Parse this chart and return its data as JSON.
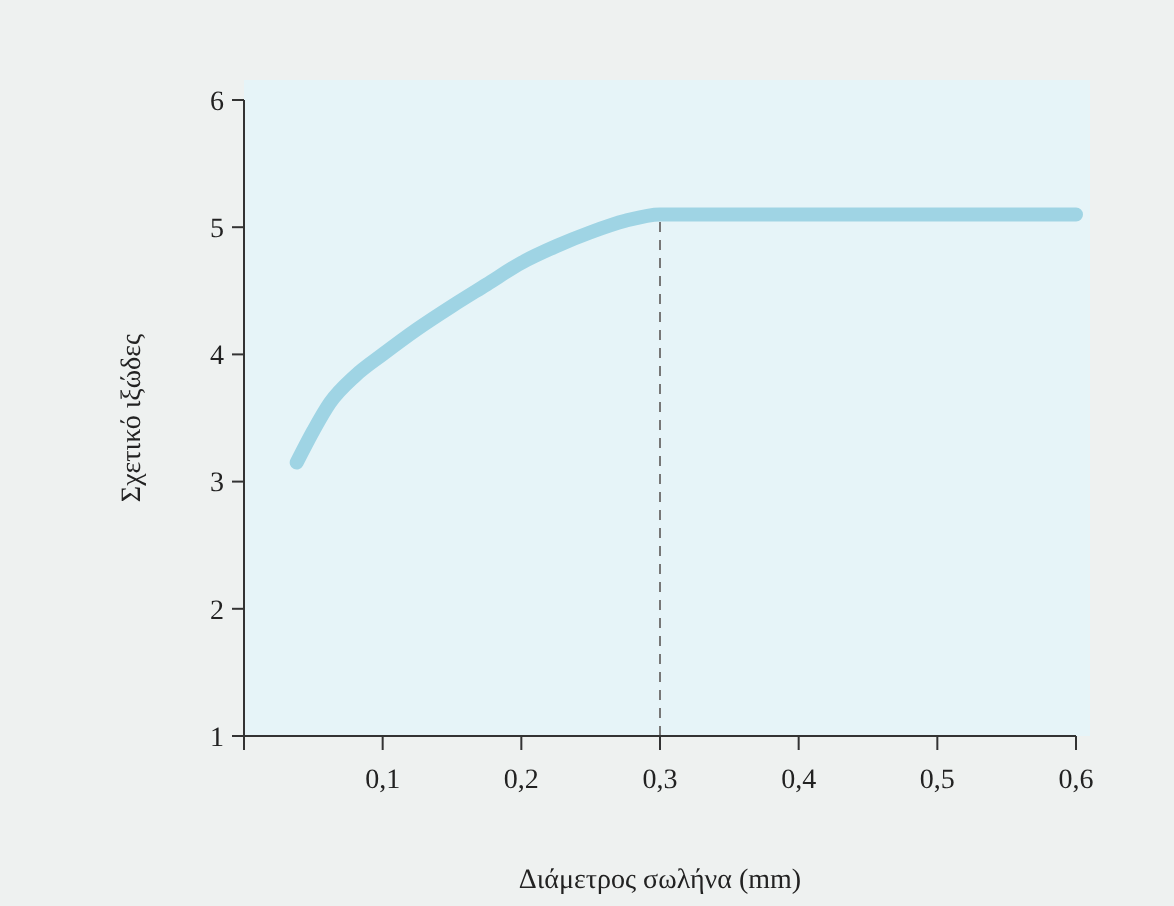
{
  "chart_data": {
    "type": "line",
    "xlabel": "Διάμετρος σωλήνα (mm)",
    "ylabel": "Σχετικό ιξώδες",
    "x": [
      0.038,
      0.05,
      0.062,
      0.08,
      0.1,
      0.125,
      0.15,
      0.175,
      0.2,
      0.225,
      0.25,
      0.275,
      0.3,
      0.4,
      0.5,
      0.6
    ],
    "series": [
      {
        "color": "#9fd4e4",
        "values": [
          3.15,
          3.4,
          3.62,
          3.83,
          4.0,
          4.2,
          4.38,
          4.55,
          4.72,
          4.85,
          4.96,
          5.05,
          5.1,
          5.1,
          5.1,
          5.1
        ]
      }
    ],
    "xlim": [
      0,
      0.6
    ],
    "ylim": [
      1,
      6
    ],
    "xticks": [
      {
        "value": 0,
        "label": null
      },
      {
        "value": 0.1,
        "label": "0,1"
      },
      {
        "value": 0.2,
        "label": "0,2"
      },
      {
        "value": 0.3,
        "label": "0,3"
      },
      {
        "value": 0.4,
        "label": "0,4"
      },
      {
        "value": 0.5,
        "label": "0,5"
      },
      {
        "value": 0.6,
        "label": "0,6"
      }
    ],
    "yticks": [
      1,
      2,
      3,
      4,
      5,
      6
    ],
    "ref_lines": [
      {
        "axis": "x",
        "value": 0.3,
        "color": "#777777",
        "line_style": "dashed"
      }
    ],
    "grid": false,
    "marker": "none",
    "line_style": "solid"
  }
}
